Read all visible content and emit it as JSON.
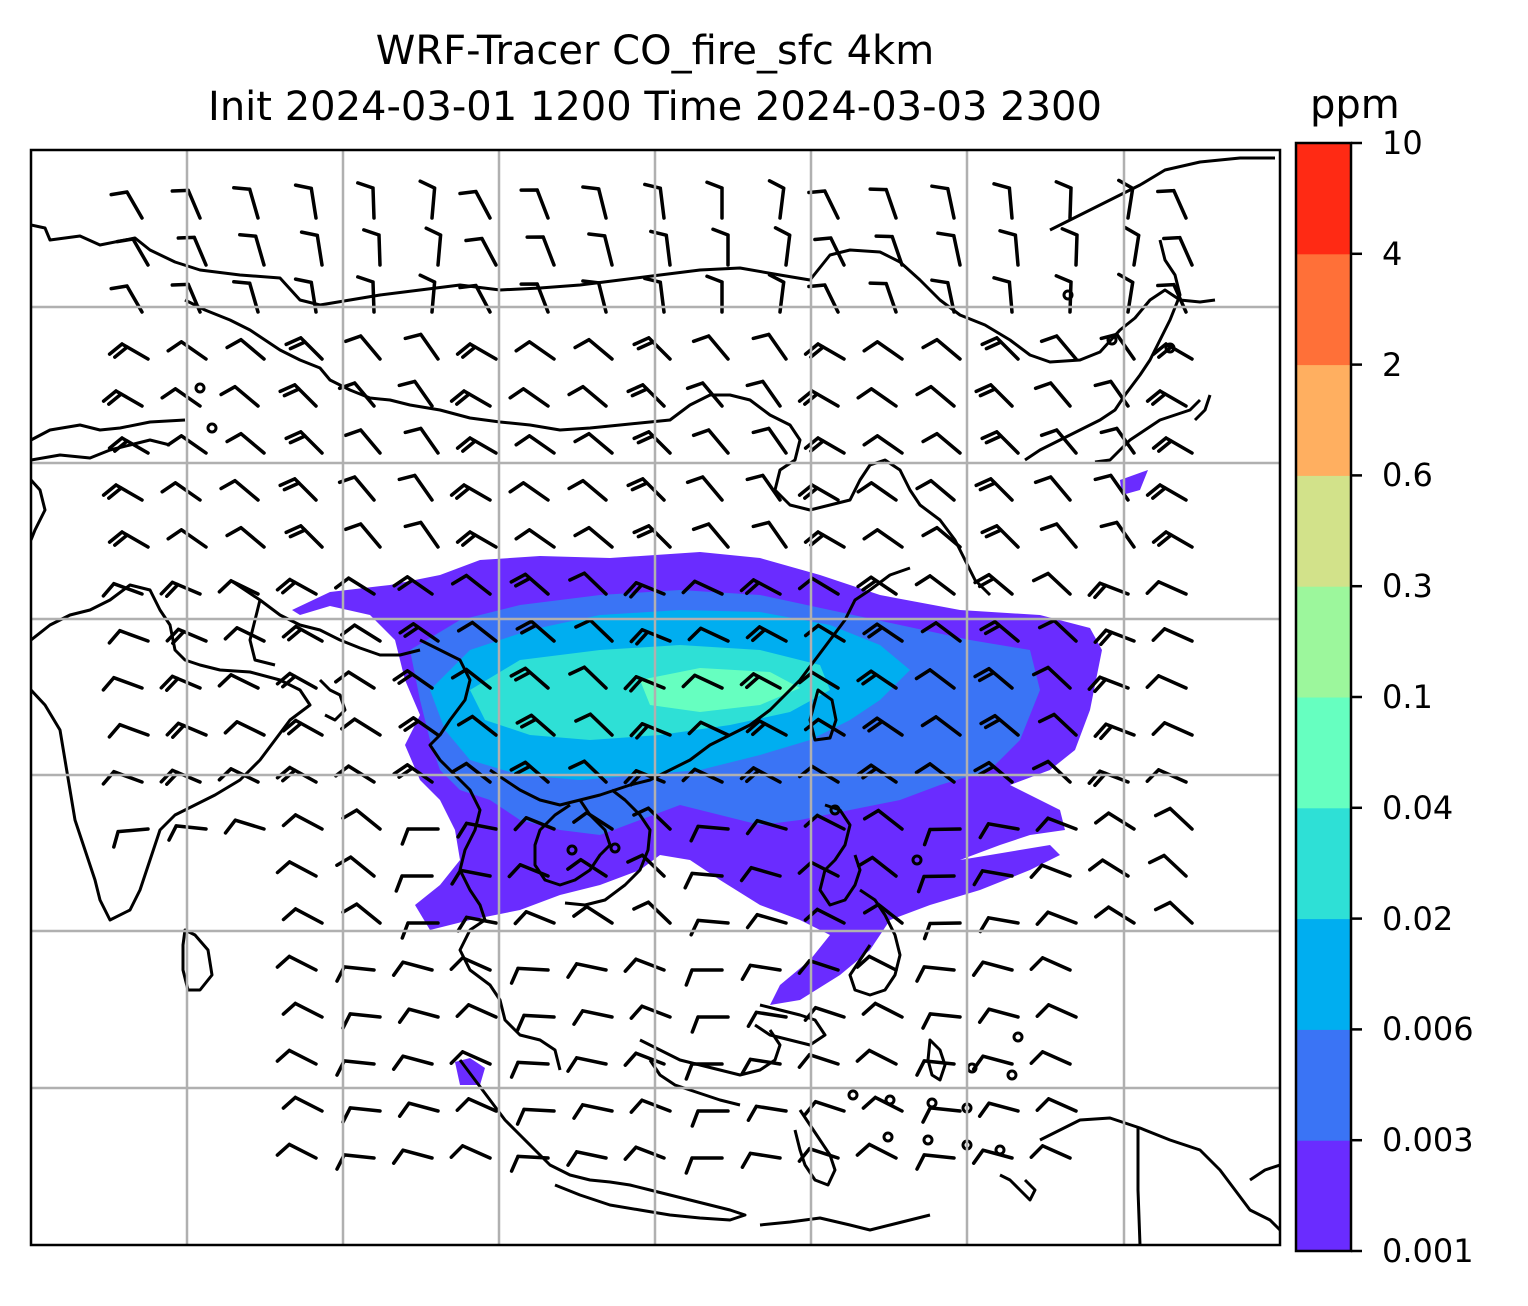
{
  "title": {
    "line1": "WRF-Tracer CO_fire_sfc 4km",
    "line2": "Init 2024-03-01 1200 Time 2024-03-03 2300"
  },
  "colorbar": {
    "unit": "ppm",
    "ticks": [
      "0.001",
      "0.003",
      "0.006",
      "0.02",
      "0.04",
      "0.1",
      "0.3",
      "0.6",
      "2",
      "4",
      "10"
    ],
    "colors": [
      "#6a2cff",
      "#3a74f5",
      "#00aef0",
      "#2ee0d6",
      "#66ffc0",
      "#9cf79c",
      "#d2e28a",
      "#ffaf60",
      "#ff7038",
      "#ff2a14"
    ]
  },
  "map": {
    "gridlines": "on",
    "features": [
      "coastlines",
      "country-borders",
      "wind-barbs",
      "filled-contours"
    ]
  }
}
